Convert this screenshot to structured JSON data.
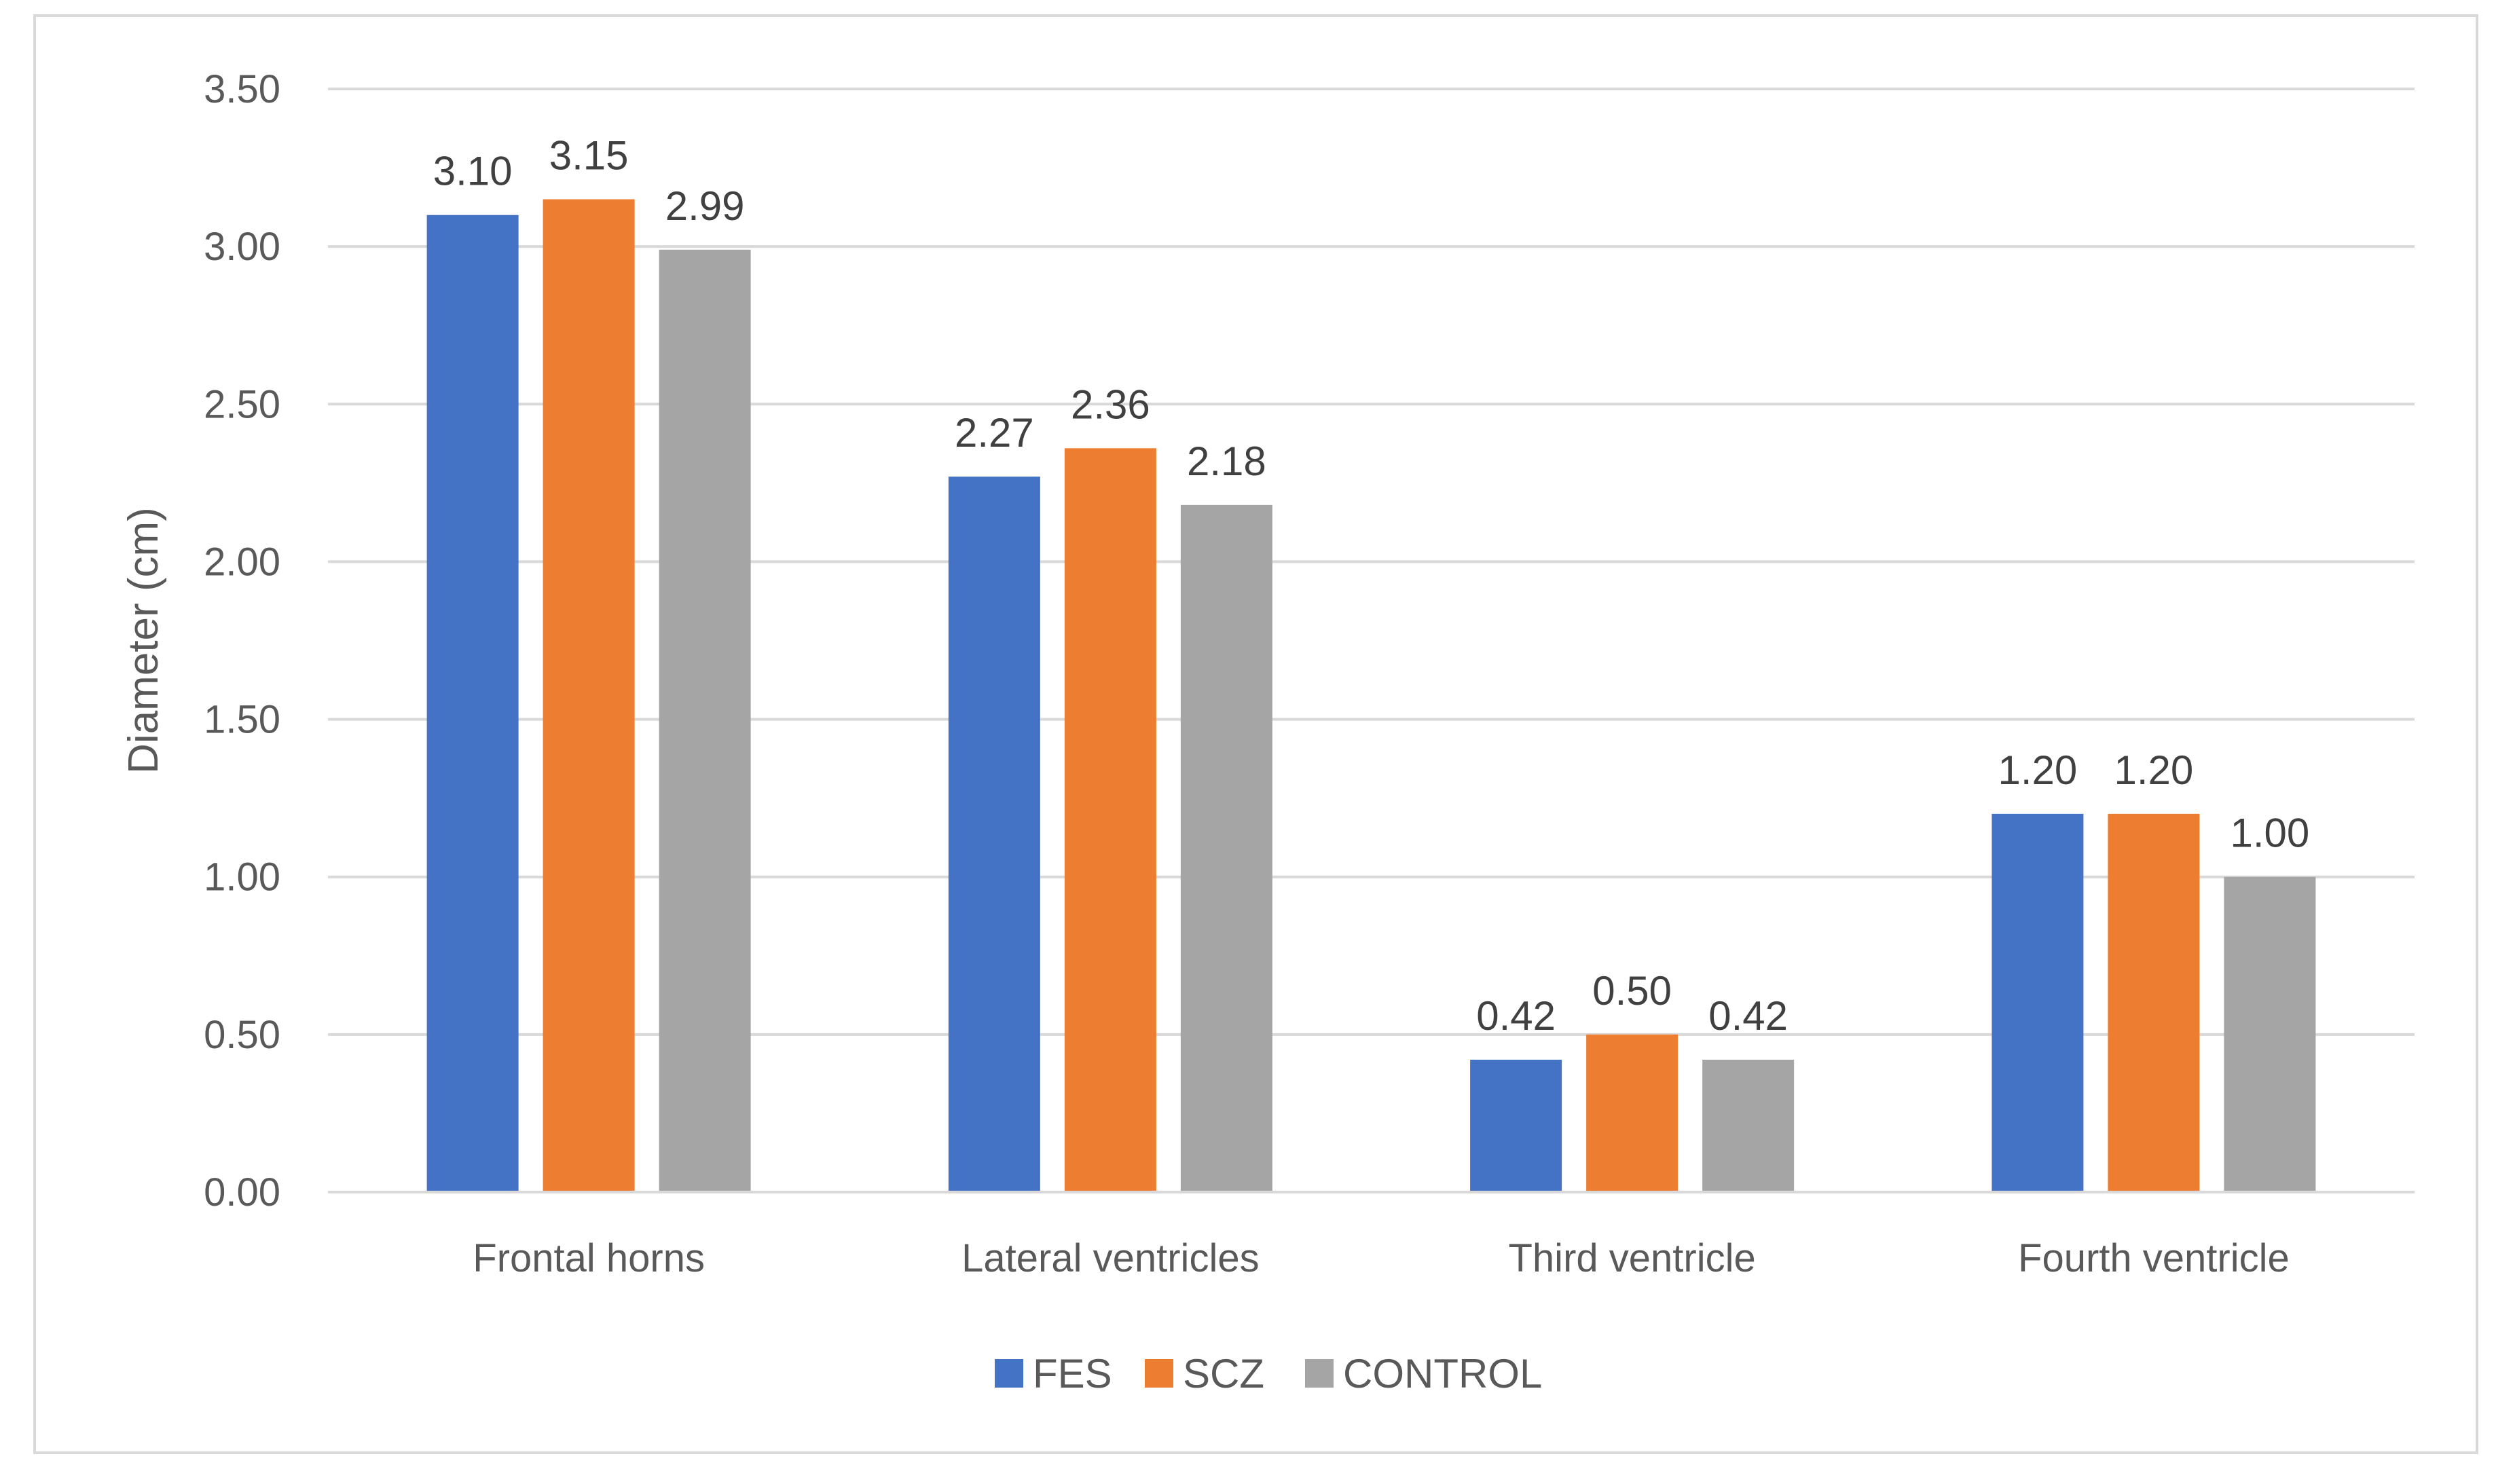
{
  "chart_data": {
    "type": "bar",
    "title": "",
    "xlabel": "",
    "ylabel": "Diameter (cm)",
    "ylim": [
      0,
      3.5
    ],
    "ytick_step": 0.5,
    "ytick_labels": [
      "0.00",
      "0.50",
      "1.00",
      "1.50",
      "2.00",
      "2.50",
      "3.00",
      "3.50"
    ],
    "grid": true,
    "legend_position": "bottom",
    "categories": [
      "Frontal horns",
      "Lateral ventricles",
      "Third ventricle",
      "Fourth ventricle"
    ],
    "series": [
      {
        "name": "FES",
        "color": "#4472c4",
        "values": [
          3.1,
          2.27,
          0.42,
          1.2
        ],
        "labels": [
          "3.10",
          "2.27",
          "0.42",
          "1.20"
        ]
      },
      {
        "name": "SCZ",
        "color": "#ed7d31",
        "values": [
          3.15,
          2.36,
          0.5,
          1.2
        ],
        "labels": [
          "3.15",
          "2.36",
          "0.50",
          "1.20"
        ]
      },
      {
        "name": "CONTROL",
        "color": "#a5a5a5",
        "values": [
          2.99,
          2.18,
          0.42,
          1.0
        ],
        "labels": [
          "2.99",
          "2.18",
          "0.42",
          "1.00"
        ]
      }
    ]
  }
}
